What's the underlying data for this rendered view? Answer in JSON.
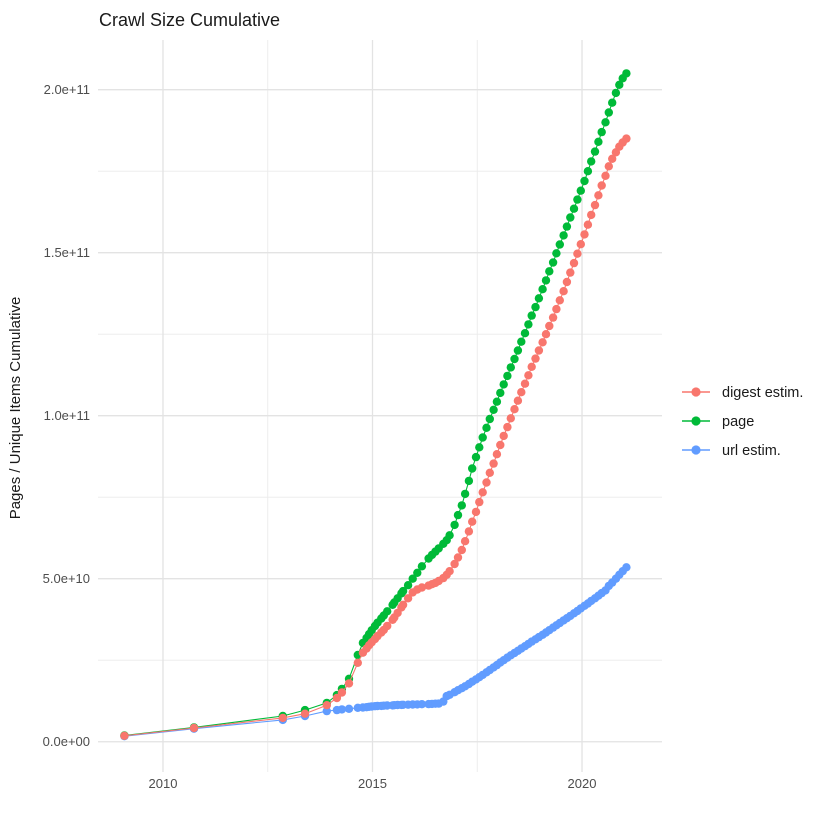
{
  "title": "Crawl Size Cumulative",
  "y_axis": {
    "label": "Pages / Unique Items Cumulative",
    "ticks": [
      "0.0e+00",
      "5.0e+10",
      "1.0e+11",
      "1.5e+11",
      "2.0e+11"
    ],
    "tick_values": [
      0,
      50000000000.0,
      100000000000.0,
      150000000000.0,
      200000000000.0
    ],
    "minor_values": [
      25000000000.0,
      75000000000.0,
      125000000000.0,
      175000000000.0
    ]
  },
  "x_axis": {
    "ticks": [
      "2010",
      "2015",
      "2020"
    ],
    "tick_values": [
      2010,
      2015,
      2020
    ],
    "minor_values": [
      2012.5,
      2017.5
    ]
  },
  "legend": {
    "entries": [
      {
        "label": "digest estim.",
        "color": "#F8766D"
      },
      {
        "label": "page",
        "color": "#00BA38"
      },
      {
        "label": "url estim.",
        "color": "#619CFF"
      }
    ]
  },
  "colors": {
    "background": "#ffffff",
    "grid_major": "#E3E3E3",
    "grid_minor": "#EBEBEB",
    "digest": "#F8766D",
    "page": "#00BA38",
    "url": "#619CFF"
  },
  "chart_data": {
    "type": "line",
    "marker": "point",
    "title": "Crawl Size Cumulative",
    "xlabel": "",
    "ylabel": "Pages / Unique Items Cumulative",
    "xlim": [
      2008.449,
      2021.909
    ],
    "ylim": [
      -9290000000.0,
      215240000000.0
    ],
    "grid": true,
    "legend_position": "right",
    "x": [
      2009.08,
      2010.74,
      2012.86,
      2013.39,
      2013.91,
      2014.15,
      2014.27,
      2014.44,
      2014.65,
      2014.77,
      2014.86,
      2014.92,
      2014.98,
      2015.06,
      2015.12,
      2015.21,
      2015.27,
      2015.35,
      2015.48,
      2015.52,
      2015.6,
      2015.69,
      2015.73,
      2015.85,
      2015.96,
      2016.07,
      2016.18,
      2016.34,
      2016.42,
      2016.5,
      2016.58,
      2016.69,
      2016.77,
      2016.84,
      2016.96,
      2017.04,
      2017.13,
      2017.21,
      2017.3,
      2017.38,
      2017.47,
      2017.55,
      2017.63,
      2017.72,
      2017.8,
      2017.89,
      2017.97,
      2018.05,
      2018.13,
      2018.22,
      2018.3,
      2018.39,
      2018.47,
      2018.55,
      2018.64,
      2018.72,
      2018.8,
      2018.89,
      2018.97,
      2019.06,
      2019.14,
      2019.22,
      2019.31,
      2019.39,
      2019.47,
      2019.56,
      2019.64,
      2019.72,
      2019.81,
      2019.89,
      2019.97,
      2020.06,
      2020.14,
      2020.22,
      2020.31,
      2020.39,
      2020.47,
      2020.56,
      2020.64,
      2020.72,
      2020.81,
      2020.89,
      2020.97,
      2021.06
    ],
    "series": [
      {
        "name": "digest estim.",
        "color": "#F8766D",
        "values": [
          1800000000.0,
          4200000000.0,
          7300000000.0,
          8600000000.0,
          11200000000.0,
          13400000000.0,
          15100000000.0,
          17900000000.0,
          24200000000.0,
          27300000000.0,
          28600000000.0,
          29600000000.0,
          30500000000.0,
          31500000000.0,
          32400000000.0,
          33500000000.0,
          34300000000.0,
          35500000000.0,
          37400000000.0,
          38100000000.0,
          39500000000.0,
          41200000000.0,
          42000000000.0,
          44000000000.0,
          45800000000.0,
          46700000000.0,
          47300000000.0,
          47900000000.0,
          48300000000.0,
          48700000000.0,
          49300000000.0,
          50200000000.0,
          51200000000.0,
          52300000000.0,
          54500000000.0,
          56500000000.0,
          58800000000.0,
          61500000000.0,
          64500000000.0,
          67500000000.0,
          70500000000.0,
          73500000000.0,
          76500000000.0,
          79500000000.0,
          82500000000.0,
          85300000000.0,
          88200000000.0,
          91000000000.0,
          93800000000.0,
          96500000000.0,
          99200000000.0,
          102000000000.0,
          104600000000.0,
          107200000000.0,
          109800000000.0,
          112400000000.0,
          115000000000.0,
          117500000000.0,
          120000000000.0,
          122500000000.0,
          125000000000.0,
          127500000000.0,
          130100000000.0,
          132700000000.0,
          135400000000.0,
          138200000000.0,
          141000000000.0,
          143900000000.0,
          146800000000.0,
          149700000000.0,
          152600000000.0,
          155600000000.0,
          158600000000.0,
          161600000000.0,
          164600000000.0,
          167600000000.0,
          170600000000.0,
          173600000000.0,
          176500000000.0,
          178800000000.0,
          180800000000.0,
          182500000000.0,
          183800000000.0,
          185000000000.0
        ]
      },
      {
        "name": "page",
        "color": "#00BA38",
        "values": [
          1900000000.0,
          4400000000.0,
          7900000000.0,
          9700000000.0,
          11900000000.0,
          14300000000.0,
          16200000000.0,
          19300000000.0,
          26600000000.0,
          30300000000.0,
          31800000000.0,
          33000000000.0,
          34200000000.0,
          35500000000.0,
          36500000000.0,
          37800000000.0,
          38700000000.0,
          40000000000.0,
          42000000000.0,
          42700000000.0,
          44000000000.0,
          45500000000.0,
          46200000000.0,
          48000000000.0,
          50000000000.0,
          51800000000.0,
          53800000000.0,
          56200000000.0,
          57300000000.0,
          58300000000.0,
          59300000000.0,
          60700000000.0,
          61800000000.0,
          63300000000.0,
          66500000000.0,
          69500000000.0,
          72500000000.0,
          76000000000.0,
          80000000000.0,
          83800000000.0,
          87300000000.0,
          90300000000.0,
          93300000000.0,
          96300000000.0,
          99000000000.0,
          101800000000.0,
          104300000000.0,
          107000000000.0,
          109600000000.0,
          112200000000.0,
          114800000000.0,
          117400000000.0,
          120000000000.0,
          122700000000.0,
          125300000000.0,
          128000000000.0,
          130700000000.0,
          133300000000.0,
          136000000000.0,
          138800000000.0,
          141500000000.0,
          144300000000.0,
          147000000000.0,
          149800000000.0,
          152500000000.0,
          155300000000.0,
          158000000000.0,
          160800000000.0,
          163500000000.0,
          166300000000.0,
          169000000000.0,
          172000000000.0,
          175000000000.0,
          178000000000.0,
          181000000000.0,
          184000000000.0,
          187000000000.0,
          190000000000.0,
          193000000000.0,
          196000000000.0,
          199000000000.0,
          201500000000.0,
          203500000000.0,
          205000000000.0
        ]
      },
      {
        "name": "url estim.",
        "color": "#619CFF",
        "values": [
          1700000000.0,
          4000000000.0,
          6700000000.0,
          7900000000.0,
          9400000000.0,
          9700000000.0,
          9900000000.0,
          10100000000.0,
          10400000000.0,
          10500000000.0,
          10600000000.0,
          10700000000.0,
          10800000000.0,
          10900000000.0,
          10950000000.0,
          11000000000.0,
          11050000000.0,
          11100000000.0,
          11150000000.0,
          11200000000.0,
          11250000000.0,
          11300000000.0,
          11320000000.0,
          11350000000.0,
          11400000000.0,
          11450000000.0,
          11500000000.0,
          11550000000.0,
          11600000000.0,
          11650000000.0,
          11700000000.0,
          12300000000.0,
          14000000000.0,
          14400000000.0,
          15200000000.0,
          15800000000.0,
          16400000000.0,
          17000000000.0,
          17700000000.0,
          18400000000.0,
          19100000000.0,
          19800000000.0,
          20500000000.0,
          21300000000.0,
          22000000000.0,
          22800000000.0,
          23500000000.0,
          24300000000.0,
          25000000000.0,
          25800000000.0,
          26500000000.0,
          27200000000.0,
          27900000000.0,
          28600000000.0,
          29300000000.0,
          30000000000.0,
          30700000000.0,
          31400000000.0,
          32100000000.0,
          32800000000.0,
          33500000000.0,
          34200000000.0,
          35000000000.0,
          35700000000.0,
          36400000000.0,
          37200000000.0,
          37900000000.0,
          38600000000.0,
          39400000000.0,
          40100000000.0,
          40900000000.0,
          41700000000.0,
          42400000000.0,
          43200000000.0,
          44000000000.0,
          44800000000.0,
          45600000000.0,
          46400000000.0,
          47800000000.0,
          48800000000.0,
          50000000000.0,
          51200000000.0,
          52300000000.0,
          53500000000.0
        ]
      }
    ]
  }
}
